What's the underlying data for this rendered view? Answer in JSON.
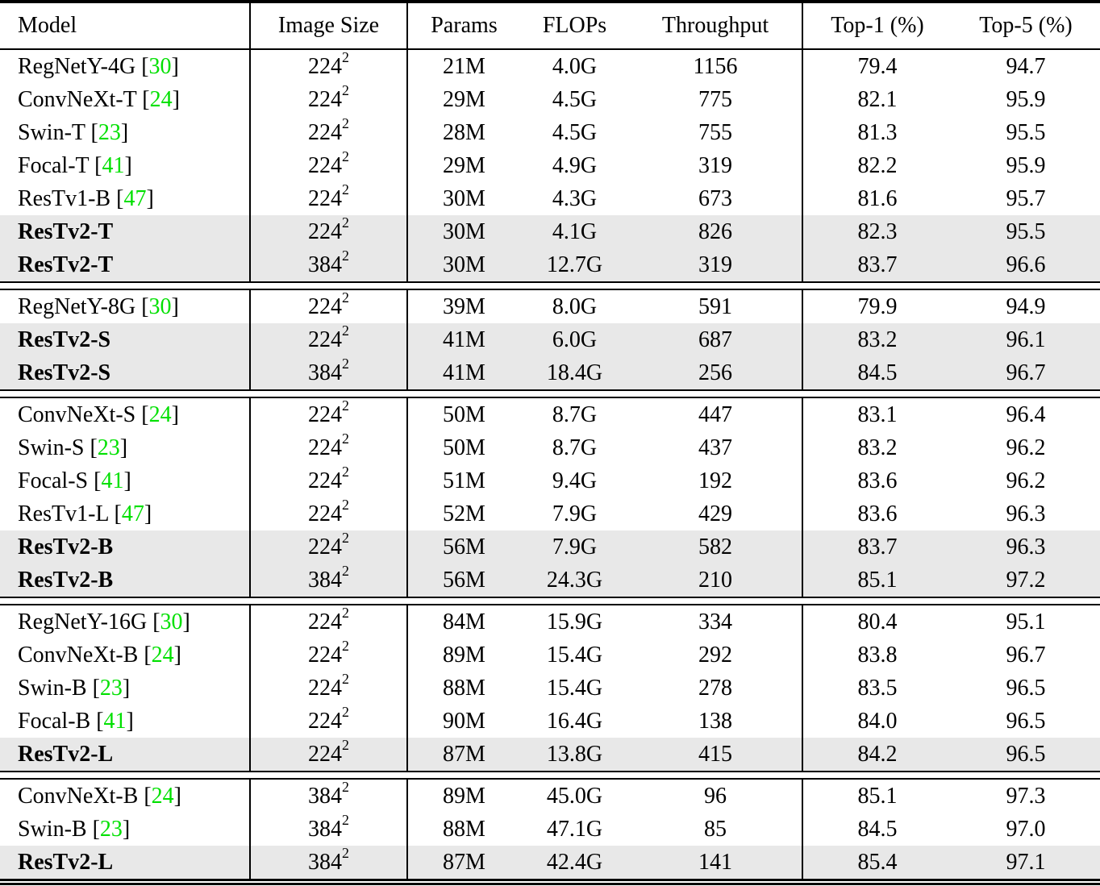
{
  "table": {
    "columns": [
      {
        "label": "Model",
        "key": "model"
      },
      {
        "label": "Image Size",
        "key": "size"
      },
      {
        "label": "Params",
        "key": "params"
      },
      {
        "label": "FLOPs",
        "key": "flops"
      },
      {
        "label": "Throughput",
        "key": "tput"
      },
      {
        "label": "Top-1 (%)",
        "key": "top1"
      },
      {
        "label": "Top-5 (%)",
        "key": "top5"
      }
    ],
    "colors": {
      "citation_green": "#00e000",
      "row_highlight": "#e8e8e8",
      "rule_black": "#000000"
    },
    "size_exponent": "2",
    "groups": [
      {
        "rows": [
          {
            "model": "RegNetY-4G",
            "cite": "30",
            "size": "224",
            "params": "21M",
            "flops": "4.0G",
            "tput": "1156",
            "top1": "79.4",
            "top5": "94.7",
            "hl": false,
            "bold": [
              "tput"
            ]
          },
          {
            "model": "ConvNeXt-T",
            "cite": "24",
            "size": "224",
            "params": "29M",
            "flops": "4.5G",
            "tput": "775",
            "top1": "82.1",
            "top5": "95.9",
            "hl": false,
            "bold": [
              "top5"
            ]
          },
          {
            "model": "Swin-T",
            "cite": "23",
            "size": "224",
            "params": "28M",
            "flops": "4.5G",
            "tput": "755",
            "top1": "81.3",
            "top5": "95.5",
            "hl": false,
            "bold": []
          },
          {
            "model": "Focal-T",
            "cite": "41",
            "size": "224",
            "params": "29M",
            "flops": "4.9G",
            "tput": "319",
            "top1": "82.2",
            "top5": "95.9",
            "hl": false,
            "bold": []
          },
          {
            "model": "ResTv1-B",
            "cite": "47",
            "size": "224",
            "params": "30M",
            "flops": "4.3G",
            "tput": "673",
            "top1": "81.6",
            "top5": "95.7",
            "hl": false,
            "bold": []
          },
          {
            "model": "ResTv2-T",
            "cite": "",
            "size": "224",
            "params": "30M",
            "flops": "4.1G",
            "tput": "826",
            "top1": "82.3",
            "top5": "95.5",
            "hl": true,
            "bold": [
              "model",
              "top1"
            ]
          },
          {
            "model": "ResTv2-T",
            "cite": "",
            "size": "384",
            "params": "30M",
            "flops": "12.7G",
            "tput": "319",
            "top1": "83.7",
            "top5": "96.6",
            "hl": true,
            "bold": [
              "model",
              "top1",
              "top5"
            ]
          }
        ]
      },
      {
        "rows": [
          {
            "model": "RegNetY-8G",
            "cite": "30",
            "size": "224",
            "params": "39M",
            "flops": "8.0G",
            "tput": "591",
            "top1": "79.9",
            "top5": "94.9",
            "hl": false,
            "bold": []
          },
          {
            "model": "ResTv2-S",
            "cite": "",
            "size": "224",
            "params": "41M",
            "flops": "6.0G",
            "tput": "687",
            "top1": "83.2",
            "top5": "96.1",
            "hl": true,
            "bold": [
              "model",
              "tput",
              "top1",
              "top5"
            ]
          },
          {
            "model": "ResTv2-S",
            "cite": "",
            "size": "384",
            "params": "41M",
            "flops": "18.4G",
            "tput": "256",
            "top1": "84.5",
            "top5": "96.7",
            "hl": true,
            "bold": [
              "model",
              "top1",
              "top5"
            ]
          }
        ]
      },
      {
        "rows": [
          {
            "model": "ConvNeXt-S",
            "cite": "24",
            "size": "224",
            "params": "50M",
            "flops": "8.7G",
            "tput": "447",
            "top1": "83.1",
            "top5": "96.4",
            "hl": false,
            "bold": [
              "top5"
            ]
          },
          {
            "model": "Swin-S",
            "cite": "23",
            "size": "224",
            "params": "50M",
            "flops": "8.7G",
            "tput": "437",
            "top1": "83.2",
            "top5": "96.2",
            "hl": false,
            "bold": []
          },
          {
            "model": "Focal-S",
            "cite": "41",
            "size": "224",
            "params": "51M",
            "flops": "9.4G",
            "tput": "192",
            "top1": "83.6",
            "top5": "96.2",
            "hl": false,
            "bold": []
          },
          {
            "model": "ResTv1-L",
            "cite": "47",
            "size": "224",
            "params": "52M",
            "flops": "7.9G",
            "tput": "429",
            "top1": "83.6",
            "top5": "96.3",
            "hl": false,
            "bold": []
          },
          {
            "model": "ResTv2-B",
            "cite": "",
            "size": "224",
            "params": "56M",
            "flops": "7.9G",
            "tput": "582",
            "top1": "83.7",
            "top5": "96.3",
            "hl": true,
            "bold": [
              "model",
              "tput",
              "top1"
            ]
          },
          {
            "model": "ResTv2-B",
            "cite": "",
            "size": "384",
            "params": "56M",
            "flops": "24.3G",
            "tput": "210",
            "top1": "85.1",
            "top5": "97.2",
            "hl": true,
            "bold": [
              "model",
              "top1",
              "top5"
            ]
          }
        ]
      },
      {
        "rows": [
          {
            "model": "RegNetY-16G",
            "cite": "30",
            "size": "224",
            "params": "84M",
            "flops": "15.9G",
            "tput": "334",
            "top1": "80.4",
            "top5": "95.1",
            "hl": false,
            "bold": []
          },
          {
            "model": "ConvNeXt-B",
            "cite": "24",
            "size": "224",
            "params": "89M",
            "flops": "15.4G",
            "tput": "292",
            "top1": "83.8",
            "top5": "96.7",
            "hl": false,
            "bold": [
              "top5"
            ]
          },
          {
            "model": "Swin-B",
            "cite": "23",
            "size": "224",
            "params": "88M",
            "flops": "15.4G",
            "tput": "278",
            "top1": "83.5",
            "top5": "96.5",
            "hl": false,
            "bold": []
          },
          {
            "model": "Focal-B",
            "cite": "41",
            "size": "224",
            "params": "90M",
            "flops": "16.4G",
            "tput": "138",
            "top1": "84.0",
            "top5": "96.5",
            "hl": false,
            "bold": []
          },
          {
            "model": "ResTv2-L",
            "cite": "",
            "size": "224",
            "params": "87M",
            "flops": "13.8G",
            "tput": "415",
            "top1": "84.2",
            "top5": "96.5",
            "hl": true,
            "bold": [
              "model",
              "tput",
              "top1"
            ]
          }
        ]
      },
      {
        "rows": [
          {
            "model": "ConvNeXt-B",
            "cite": "24",
            "size": "384",
            "params": "89M",
            "flops": "45.0G",
            "tput": "96",
            "top1": "85.1",
            "top5": "97.3",
            "hl": false,
            "bold": [
              "top5"
            ]
          },
          {
            "model": "Swin-B",
            "cite": "23",
            "size": "384",
            "params": "88M",
            "flops": "47.1G",
            "tput": "85",
            "top1": "84.5",
            "top5": "97.0",
            "hl": false,
            "bold": []
          },
          {
            "model": "ResTv2-L",
            "cite": "",
            "size": "384",
            "params": "87M",
            "flops": "42.4G",
            "tput": "141",
            "top1": "85.4",
            "top5": "97.1",
            "hl": true,
            "bold": [
              "model",
              "tput",
              "top1"
            ]
          }
        ]
      }
    ]
  }
}
